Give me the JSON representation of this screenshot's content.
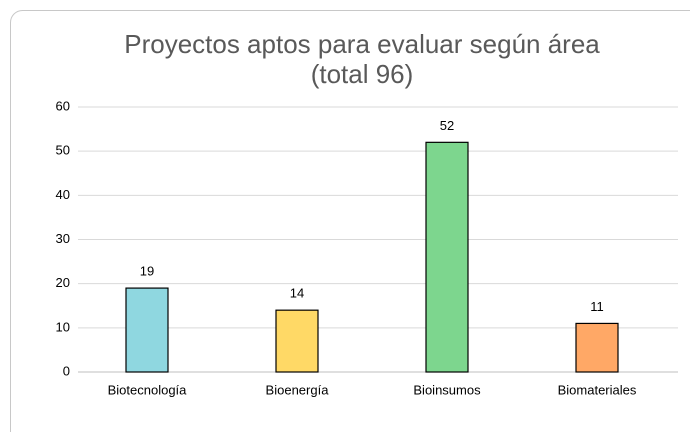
{
  "chart_data": {
    "type": "bar",
    "title": [
      "Proyectos aptos para evaluar según área",
      "(total 96)"
    ],
    "categories": [
      "Biotecnología",
      "Bioenergía",
      "Bioinsumos",
      "Biomateriales"
    ],
    "values": [
      19,
      14,
      52,
      11
    ],
    "colors": [
      "#8fd7e0",
      "#ffd966",
      "#7dd68e",
      "#ffa866"
    ],
    "ylim": [
      0,
      60
    ],
    "yticks": [
      0,
      10,
      20,
      30,
      40,
      50,
      60
    ],
    "grid": true
  }
}
